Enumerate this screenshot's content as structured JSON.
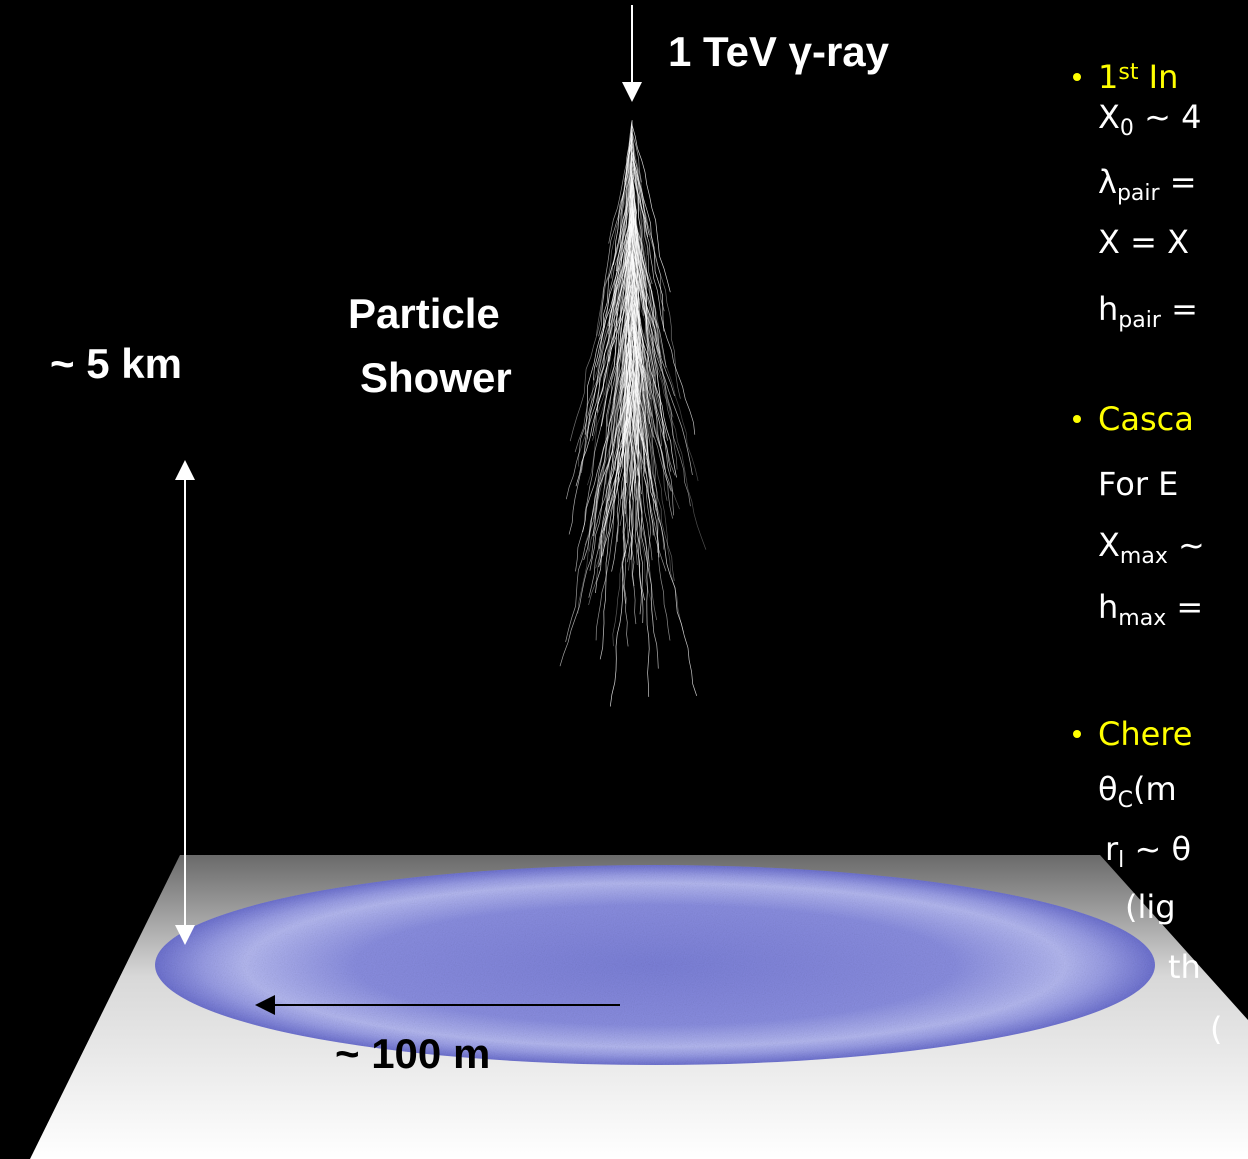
{
  "labels": {
    "gamma": "1 TeV γ-ray",
    "shower": [
      "Particle",
      "Shower"
    ],
    "height": "~ 5 km",
    "radius": "~ 100 m"
  },
  "bullets": [
    {
      "heading": [
        {
          "text": "1"
        },
        {
          "sup": "st"
        },
        {
          "text": " In"
        }
      ],
      "lines": [
        [
          {
            "text": "X"
          },
          {
            "sub": "0"
          },
          {
            "text": " ~ 4"
          }
        ],
        [
          {
            "text": "λ"
          },
          {
            "sub": "pair"
          },
          {
            "text": " ="
          }
        ],
        [
          {
            "text": "X = X"
          }
        ],
        [
          {
            "text": "h"
          },
          {
            "sub": "pair"
          },
          {
            "text": " ="
          }
        ]
      ]
    },
    {
      "heading": [
        {
          "text": "Casca"
        }
      ],
      "lines": [
        [
          {
            "text": "For E"
          }
        ],
        [
          {
            "text": "X"
          },
          {
            "sub": "max"
          },
          {
            "text": " ~"
          }
        ],
        [
          {
            "text": "h"
          },
          {
            "sub": "max"
          },
          {
            "text": " ="
          }
        ]
      ]
    },
    {
      "heading": [
        {
          "text": "Chere"
        }
      ],
      "lines": [
        [
          {
            "text": "θ"
          },
          {
            "sub": "C"
          },
          {
            "text": "(m"
          }
        ],
        [
          {
            "text": "r"
          },
          {
            "sub": "l"
          },
          {
            "text": " ~ θ"
          }
        ],
        [
          {
            "text": "(lig"
          }
        ],
        [
          {
            "text": "th"
          }
        ],
        [
          {
            "text": "("
          }
        ]
      ]
    }
  ]
}
